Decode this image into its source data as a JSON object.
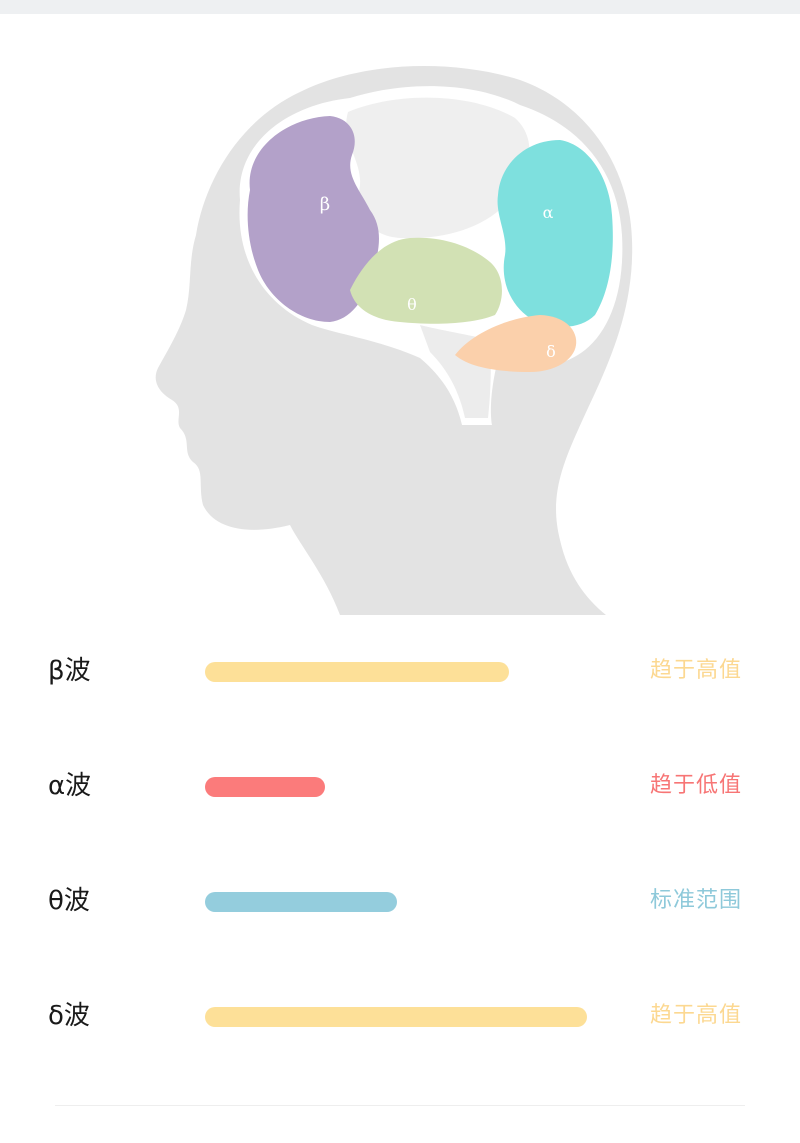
{
  "colors": {
    "high": "#fde098",
    "low": "#fb7b7b",
    "normal": "#94cddd",
    "high_text": "#fcd891",
    "low_text": "#f77575",
    "normal_text": "#8ec9da",
    "head": "#e3e3e3",
    "region_beta": "#b3a1c9",
    "region_alpha": "#7ee0de",
    "region_theta": "#d2e1b4",
    "region_delta": "#fbd0ab"
  },
  "brain": {
    "regions": [
      {
        "symbol": "β",
        "color": "#b3a1c9"
      },
      {
        "symbol": "α",
        "color": "#7ee0de"
      },
      {
        "symbol": "θ",
        "color": "#d2e1b4"
      },
      {
        "symbol": "δ",
        "color": "#fbd0ab"
      }
    ]
  },
  "waves": [
    {
      "name": "β波",
      "level": 0.76,
      "status": "趋于高值",
      "color": "#fde098",
      "status_color": "#fcd891"
    },
    {
      "name": "α波",
      "level": 0.3,
      "status": "趋于低值",
      "color": "#fb7b7b",
      "status_color": "#f77575"
    },
    {
      "name": "θ波",
      "level": 0.48,
      "status": "标准范围",
      "color": "#94cddd",
      "status_color": "#8ec9da"
    },
    {
      "name": "δ波",
      "level": 0.955,
      "status": "趋于高值",
      "color": "#fde098",
      "status_color": "#fcd891"
    }
  ]
}
